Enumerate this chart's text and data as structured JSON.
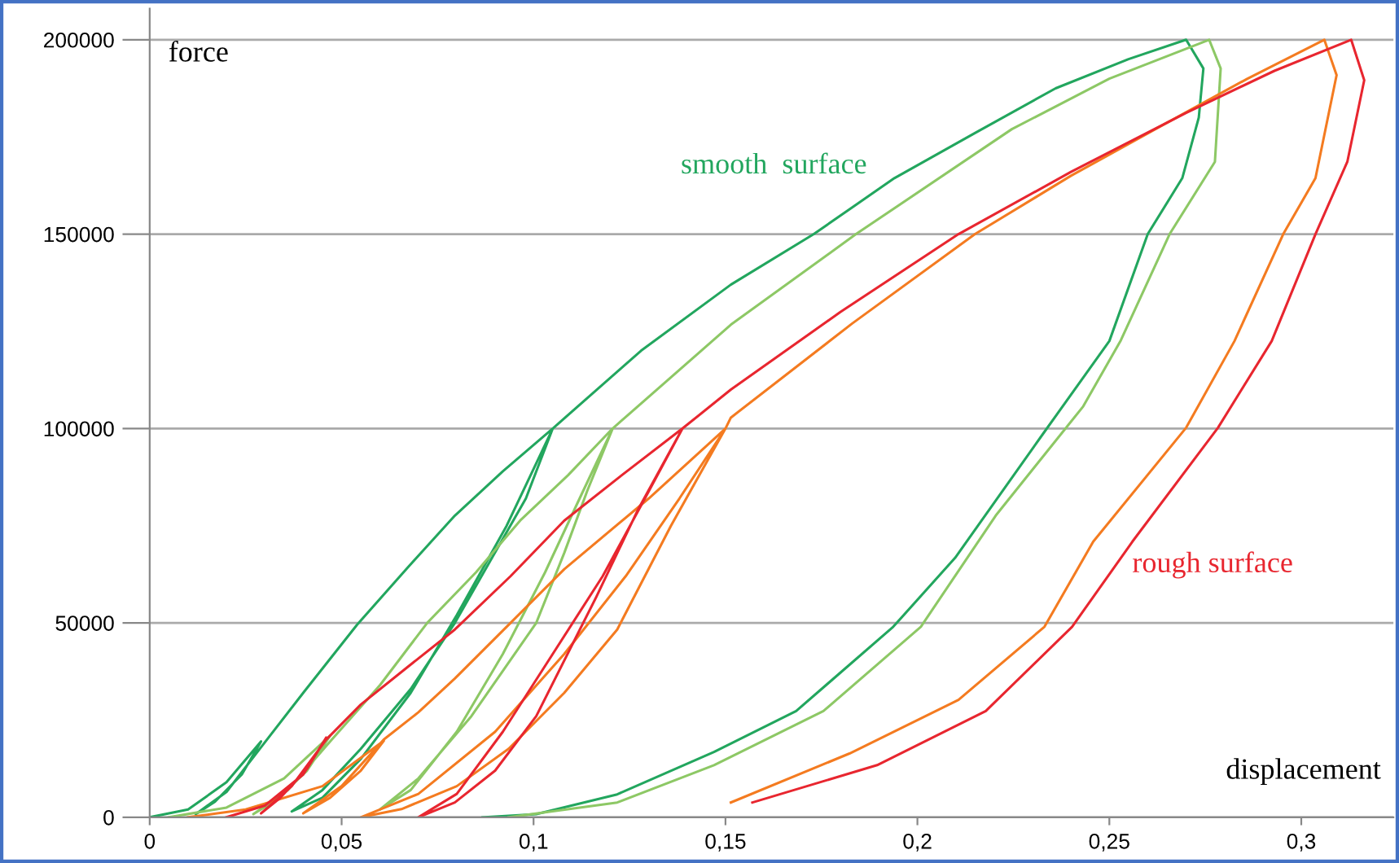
{
  "chart_data": {
    "type": "line",
    "xlabel": "displacement",
    "ylabel": "force",
    "xlim": [
      0,
      0.324
    ],
    "ylim": [
      0,
      208000
    ],
    "xticks": [
      0,
      {
        "value": 0.05,
        "label": "0,05"
      },
      {
        "value": 0.1,
        "label": "0,1"
      },
      {
        "value": 0.15,
        "label": "0,15"
      },
      {
        "value": 0.2,
        "label": "0,2"
      },
      {
        "value": 0.25,
        "label": "0,25"
      },
      {
        "value": 0.3,
        "label": "0,3"
      }
    ],
    "yticks": [
      0,
      50000,
      100000,
      150000,
      200000
    ],
    "grid": "y",
    "marker": "none",
    "line_style": "solid",
    "annotations": [
      "smooth  surface",
      "rough surface"
    ],
    "series": [
      {
        "color": "#22a65e",
        "x": [
          0,
          0.01,
          0.02,
          0.029,
          0.024,
          0.017,
          0.012,
          0.02,
          0.029,
          0.04,
          0.054,
          0.067,
          0.0795,
          0.092,
          0.105,
          0.098,
          0.0795,
          0.068,
          0.055,
          0.045,
          0.037,
          0.045,
          0.055,
          0.068,
          0.08,
          0.093,
          0.105,
          0.128,
          0.1514,
          0.173,
          0.194,
          0.215,
          0.236,
          0.255,
          0.27,
          0.2745,
          0.2733,
          0.269,
          0.26,
          0.25,
          0.2327,
          0.2098,
          0.1937,
          0.1684,
          0.147,
          0.1218,
          0.1007,
          0.0867
        ],
        "values": [
          0,
          2000,
          9000,
          19500,
          11000,
          4000,
          800,
          6500,
          18000,
          32000,
          49500,
          64000,
          77600,
          89000,
          100000,
          82000,
          50000,
          33000,
          17600,
          7000,
          1500,
          5000,
          15000,
          32000,
          52000,
          75000,
          100000,
          120000,
          137000,
          150000,
          164400,
          176000,
          187500,
          195000,
          200000,
          192600,
          180000,
          164400,
          150000,
          122500,
          98600,
          66700,
          49000,
          27300,
          16800,
          5900,
          800,
          0
        ]
      },
      {
        "color": "#8dc865",
        "x": [
          0.005,
          0.02,
          0.035,
          0.047,
          0.041,
          0.033,
          0.027,
          0.036,
          0.047,
          0.06,
          0.0723,
          0.085,
          0.0965,
          0.109,
          0.1206,
          0.114,
          0.108,
          0.1007,
          0.0838,
          0.07,
          0.06,
          0.068,
          0.08,
          0.092,
          0.103,
          0.112,
          0.1206,
          0.1514,
          0.184,
          0.2246,
          0.25,
          0.276,
          0.279,
          0.2775,
          0.2657,
          0.253,
          0.2432,
          0.2204,
          0.2009,
          0.1755,
          0.147,
          0.1218,
          0.0935
        ],
        "values": [
          0,
          2500,
          10000,
          21000,
          12000,
          4500,
          800,
          7000,
          19500,
          34000,
          50000,
          63000,
          76300,
          88000,
          100000,
          84000,
          68000,
          50000,
          26000,
          10000,
          2000,
          7000,
          22000,
          42000,
          63000,
          82000,
          100000,
          126700,
          150000,
          177000,
          190000,
          200000,
          192600,
          168600,
          150000,
          122700,
          105700,
          77600,
          49000,
          27300,
          13400,
          3800,
          0
        ]
      },
      {
        "color": "#f47b20",
        "x": [
          0.01,
          0.025,
          0.045,
          0.061,
          0.055,
          0.047,
          0.04,
          0.05,
          0.061,
          0.07,
          0.0795,
          0.094,
          0.108,
          0.13,
          0.15,
          0.1358,
          0.1218,
          0.108,
          0.0935,
          0.08,
          0.0656,
          0.055,
          0.07,
          0.09,
          0.108,
          0.124,
          0.138,
          0.15,
          0.1514,
          0.183,
          0.215,
          0.24,
          0.2644,
          0.286,
          0.306,
          0.3092,
          0.3037,
          0.2953,
          0.2826,
          0.27,
          0.2458,
          0.2331,
          0.2107,
          0.1823,
          0.1514
        ],
        "values": [
          0,
          2000,
          8000,
          19700,
          12000,
          5000,
          1000,
          8000,
          20000,
          27000,
          35700,
          50000,
          63800,
          82000,
          100000,
          75000,
          48300,
          32000,
          17600,
          8000,
          2100,
          0,
          6000,
          22000,
          42000,
          62000,
          82000,
          100000,
          102800,
          127000,
          150000,
          165000,
          178300,
          190000,
          200000,
          190900,
          164400,
          150000,
          122500,
          100200,
          70900,
          49000,
          30200,
          16400,
          3800
        ]
      },
      {
        "color": "#e8262f",
        "x": [
          0.02,
          0.03,
          0.04,
          0.046,
          0.041,
          0.034,
          0.029,
          0.037,
          0.046,
          0.055,
          0.067,
          0.0795,
          0.094,
          0.108,
          0.123,
          0.1388,
          0.1273,
          0.1163,
          0.1007,
          0.09,
          0.0795,
          0.07,
          0.08,
          0.092,
          0.105,
          0.118,
          0.129,
          0.1388,
          0.1514,
          0.18,
          0.2107,
          0.24,
          0.27,
          0.293,
          0.313,
          0.3164,
          0.312,
          0.3037,
          0.2923,
          0.2783,
          0.256,
          0.2403,
          0.2178,
          0.1895,
          0.157
        ],
        "values": [
          0,
          3000,
          11000,
          20500,
          12500,
          5000,
          1000,
          8000,
          20000,
          29000,
          38500,
          48300,
          62000,
          76300,
          88000,
          100000,
          79300,
          56600,
          26000,
          12000,
          3800,
          0,
          6000,
          22000,
          42000,
          62000,
          82000,
          100000,
          110000,
          130000,
          150000,
          166000,
          181200,
          192000,
          200000,
          189600,
          168600,
          150000,
          122500,
          100200,
          70900,
          49000,
          27300,
          13400,
          3800
        ]
      }
    ]
  }
}
